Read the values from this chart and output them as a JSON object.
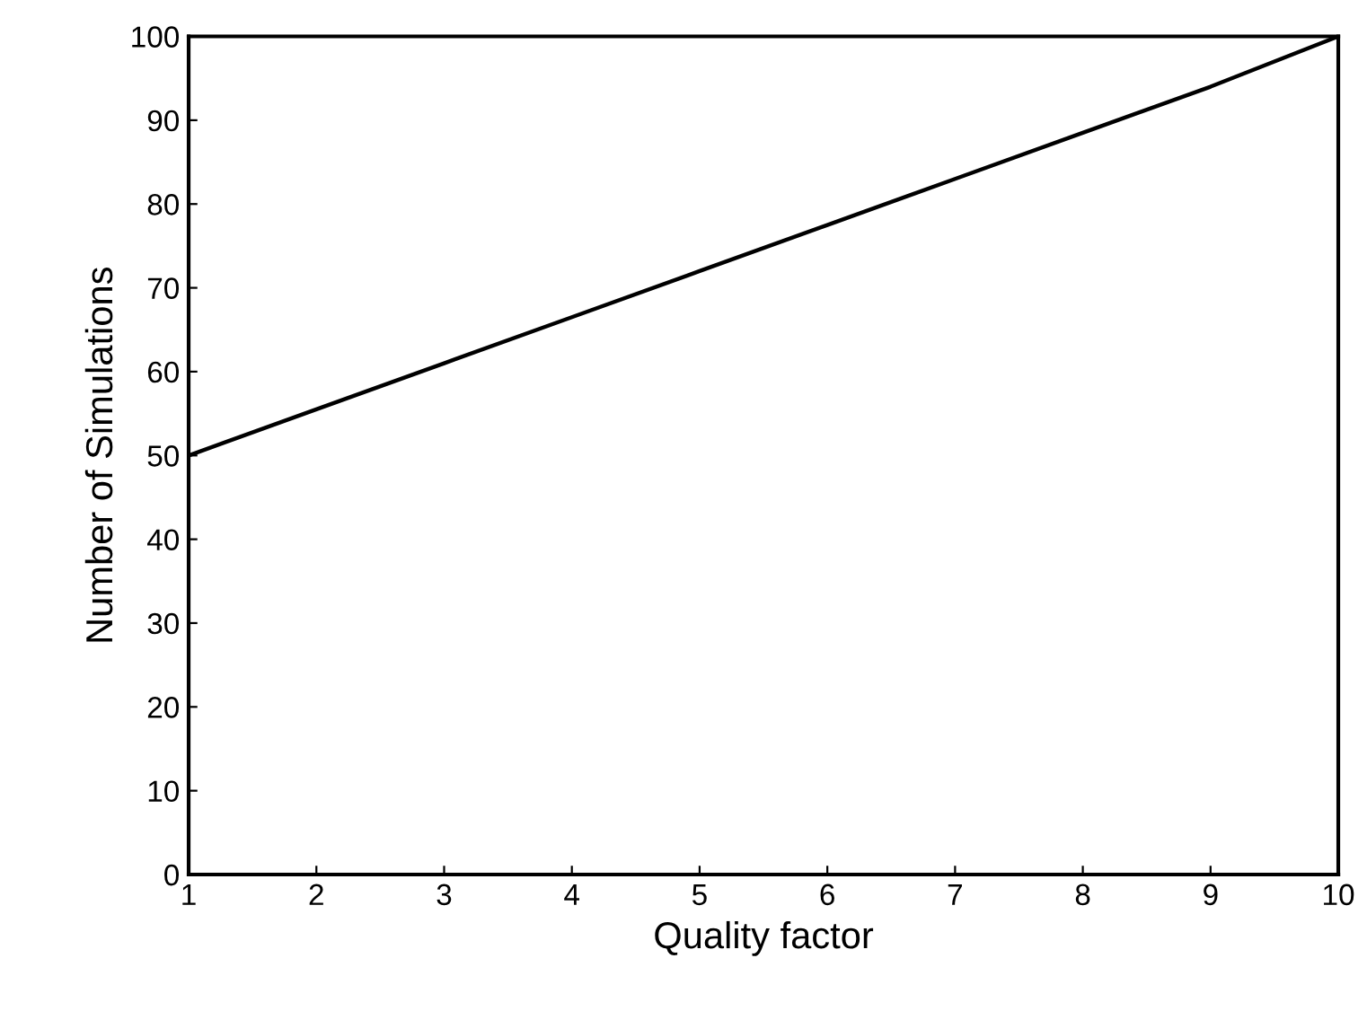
{
  "chart_data": {
    "type": "line",
    "xlabel": "Quality factor",
    "ylabel": "Number of Simulations",
    "x": [
      1,
      2,
      3,
      4,
      5,
      6,
      7,
      8,
      9,
      10
    ],
    "series": [
      {
        "color": "#000000",
        "values": [
          50,
          55.5,
          61,
          66.5,
          72,
          77.5,
          83,
          88.5,
          94,
          100
        ]
      }
    ],
    "xlim": [
      1,
      10
    ],
    "ylim": [
      0,
      100
    ],
    "xticks": [
      1,
      2,
      3,
      4,
      5,
      6,
      7,
      8,
      9,
      10
    ],
    "yticks": [
      0,
      10,
      20,
      30,
      40,
      50,
      60,
      70,
      80,
      90,
      100
    ],
    "grid": false,
    "legend": false,
    "marker": "none",
    "line_style": "solid"
  }
}
